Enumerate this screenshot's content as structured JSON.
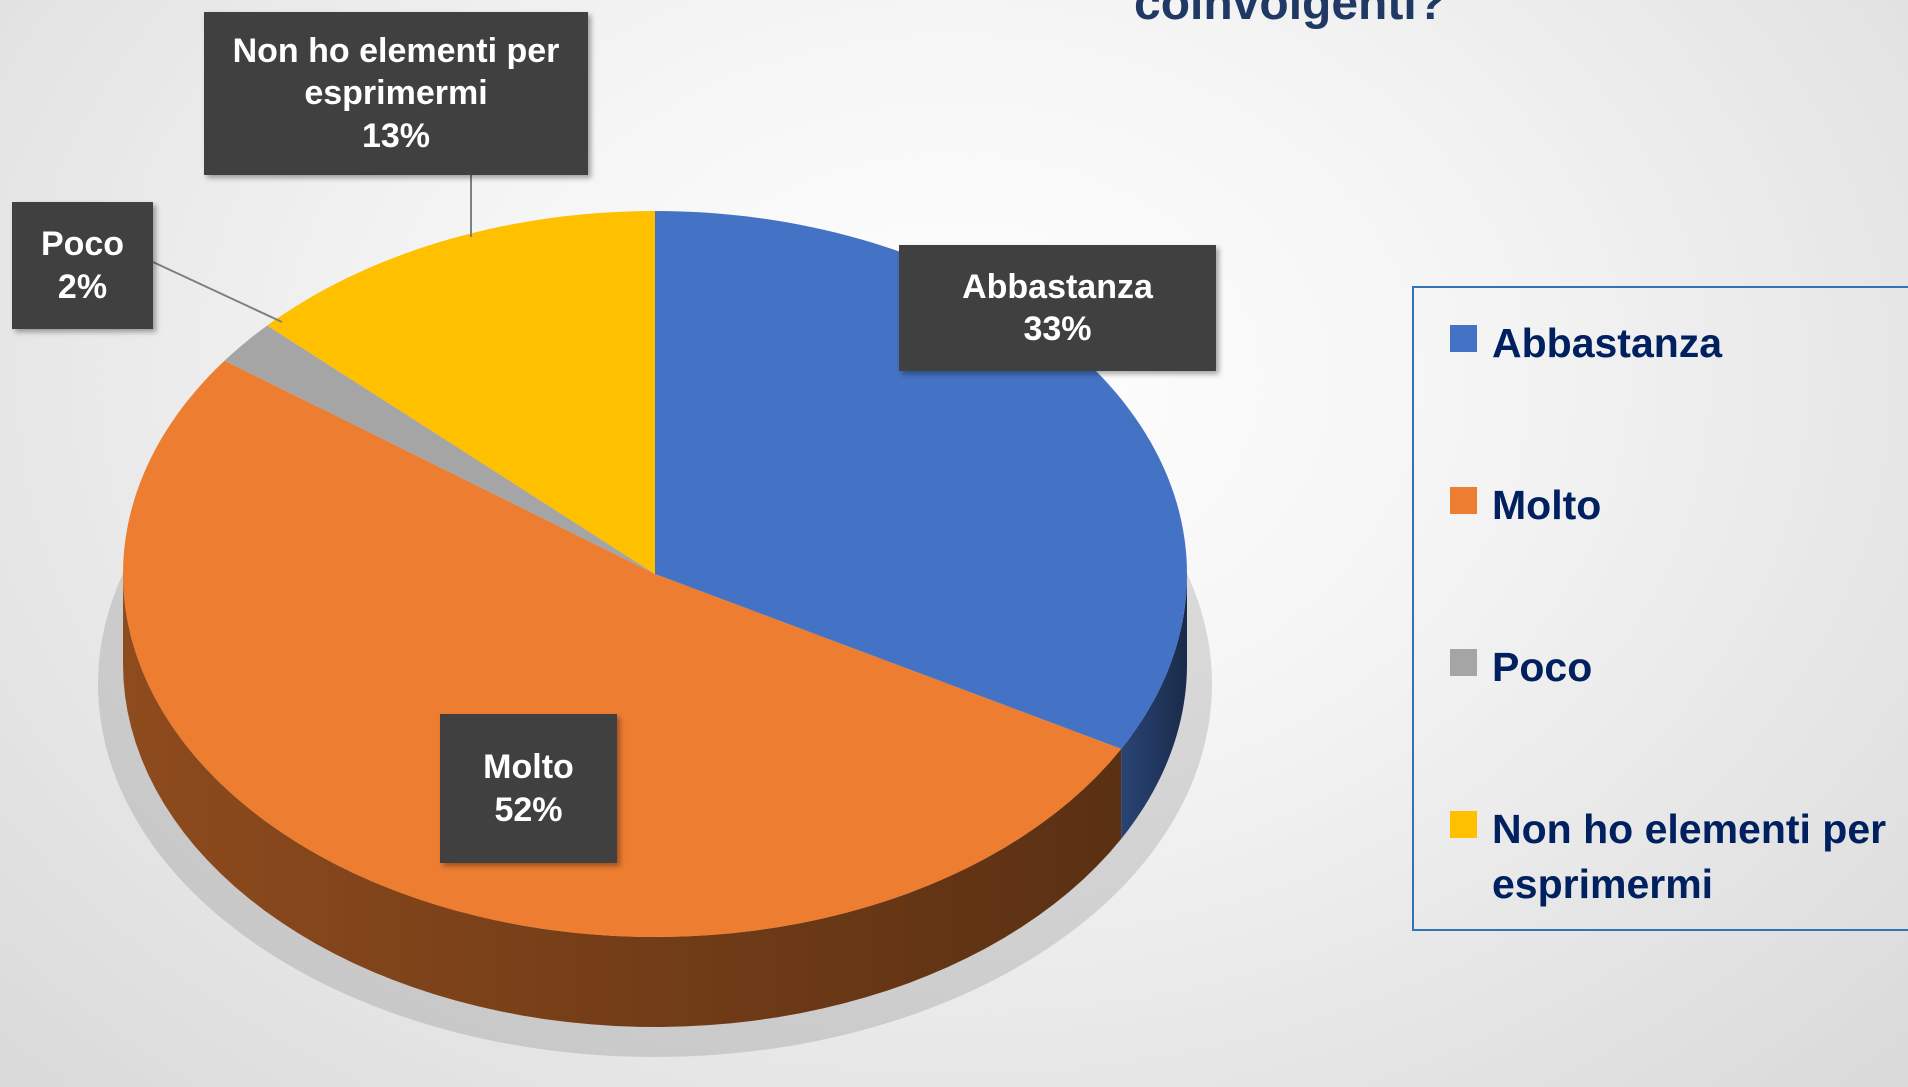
{
  "chart_data": {
    "type": "pie",
    "title": "coinvolgenti?",
    "categories": [
      "Abbastanza",
      "Molto",
      "Poco",
      "Non ho elementi per esprimermi"
    ],
    "values": [
      33,
      52,
      2,
      13
    ],
    "value_labels": [
      "33%",
      "52%",
      "2%",
      "13%"
    ],
    "colors": [
      "#4472c4",
      "#ed7d31",
      "#a5a5a5",
      "#ffc000"
    ],
    "legend": "right"
  }
}
